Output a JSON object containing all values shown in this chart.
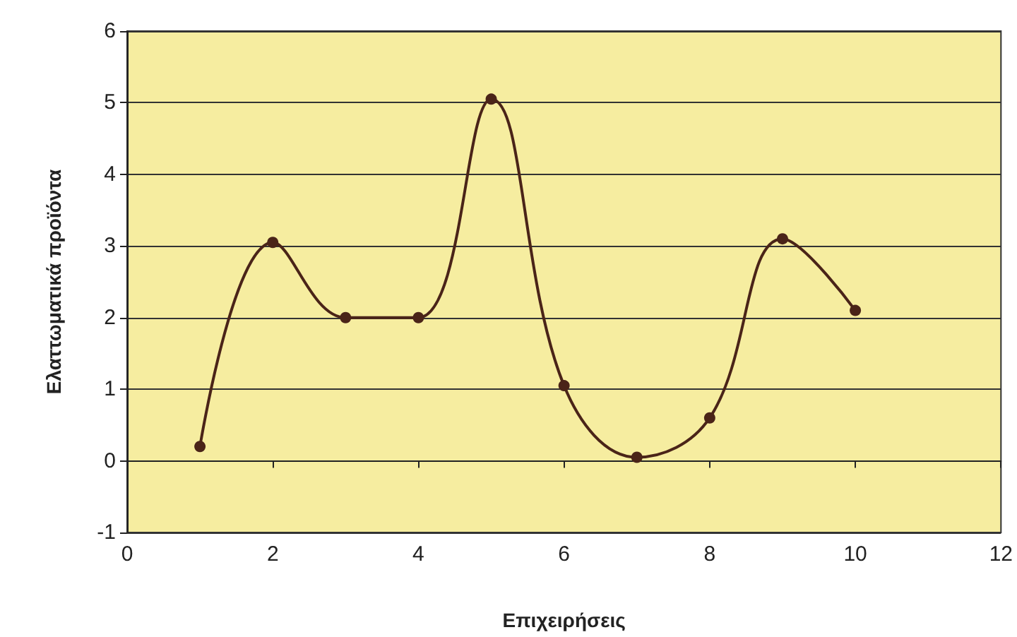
{
  "chart_data": {
    "type": "line",
    "xlabel": "Επιχειρήσεις",
    "ylabel": "Ελαττωματικά προϊόντα",
    "x": [
      1,
      2,
      3,
      4,
      5,
      6,
      7,
      8,
      9,
      10
    ],
    "series": [
      {
        "color": "#4a2418",
        "values": [
          0.2,
          3.05,
          2,
          2,
          5.05,
          1.05,
          0.05,
          0.6,
          3.1,
          2.1
        ]
      }
    ],
    "xlim": [
      0,
      12
    ],
    "xticks": [
      0,
      2,
      4,
      6,
      8,
      10,
      12
    ],
    "ylim": [
      -1,
      6
    ],
    "yticks": [
      -1,
      0,
      1,
      2,
      3,
      4,
      5,
      6
    ],
    "grid": "y",
    "marker": "circle",
    "line_style": "solid"
  }
}
